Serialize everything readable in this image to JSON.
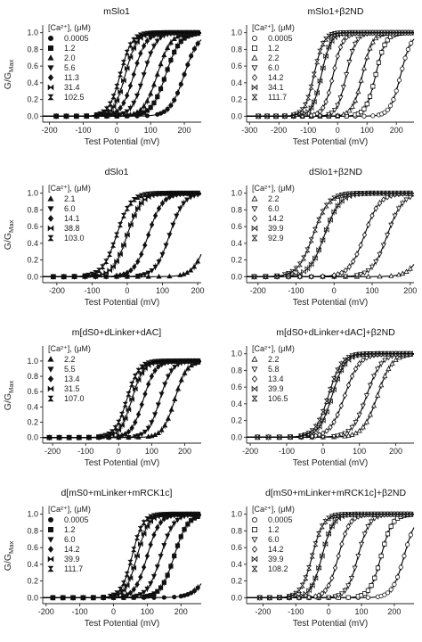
{
  "y_axis_label": "G/G",
  "y_axis_label_sub": "Max",
  "chart_data": [
    {
      "type": "scatter",
      "title": "mSlo1",
      "xlabel": "Test Potential (mV)",
      "ylabel": "G/GMax",
      "xlim": [
        -220,
        250
      ],
      "ylim": [
        -0.05,
        1.05
      ],
      "xticks": [
        "-200",
        "-100",
        "0",
        "100",
        "200"
      ],
      "yticks": [
        "0.0",
        "0.2",
        "0.4",
        "0.6",
        "0.8",
        "1.0"
      ],
      "legend_title": "[Ca²⁺], (μM)",
      "filled": true,
      "series": [
        {
          "name": "0.0005",
          "marker": "circle",
          "vhalf": 200,
          "slope": 21
        },
        {
          "name": "1.2",
          "marker": "square",
          "vhalf": 145,
          "slope": 21
        },
        {
          "name": "2.0",
          "marker": "triangle-up",
          "vhalf": 120,
          "slope": 20
        },
        {
          "name": "5.6",
          "marker": "triangle-down",
          "vhalf": 80,
          "slope": 18
        },
        {
          "name": "11.3",
          "marker": "diamond",
          "vhalf": 50,
          "slope": 18
        },
        {
          "name": "31.4",
          "marker": "bowtie-h",
          "vhalf": 25,
          "slope": 17
        },
        {
          "name": "102.5",
          "marker": "bowtie-v",
          "vhalf": 10,
          "slope": 17
        }
      ]
    },
    {
      "type": "scatter",
      "title": "mSlo1+β2ND",
      "xlabel": "Test Potential (mV)",
      "ylabel": "",
      "xlim": [
        -310,
        260
      ],
      "ylim": [
        -0.05,
        1.05
      ],
      "xticks": [
        "-300",
        "-200",
        "-100",
        "0",
        "100",
        "200"
      ],
      "yticks": [
        "0.0",
        "0.2",
        "0.4",
        "0.6",
        "0.8",
        "1.0"
      ],
      "legend_title": "[Ca²⁺], (μM)",
      "filled": false,
      "series": [
        {
          "name": "0.0005",
          "marker": "circle",
          "vhalf": 215,
          "slope": 18
        },
        {
          "name": "1.2",
          "marker": "square",
          "vhalf": 130,
          "slope": 17
        },
        {
          "name": "2.2",
          "marker": "triangle-up",
          "vhalf": 85,
          "slope": 17
        },
        {
          "name": "6.0",
          "marker": "triangle-down",
          "vhalf": 30,
          "slope": 16
        },
        {
          "name": "14.2",
          "marker": "diamond",
          "vhalf": -15,
          "slope": 16
        },
        {
          "name": "34.1",
          "marker": "bowtie-h",
          "vhalf": -55,
          "slope": 16
        },
        {
          "name": "111.7",
          "marker": "bowtie-v",
          "vhalf": -80,
          "slope": 16
        }
      ]
    },
    {
      "type": "scatter",
      "title": "dSlo1",
      "xlabel": "Test Potential (mV)",
      "ylabel": "G/GMax",
      "xlim": [
        -240,
        210
      ],
      "ylim": [
        -0.05,
        1.05
      ],
      "xticks": [
        "-200",
        "-100",
        "0",
        "100",
        "200"
      ],
      "yticks": [
        "0.0",
        "0.2",
        "0.4",
        "0.6",
        "0.8",
        "1.0"
      ],
      "legend_title": "[Ca²⁺], (μM)",
      "filled": true,
      "series": [
        {
          "name": "2.1",
          "marker": "triangle-up",
          "vhalf": 230,
          "slope": 20
        },
        {
          "name": "6.0",
          "marker": "triangle-down",
          "vhalf": 120,
          "slope": 20
        },
        {
          "name": "14.1",
          "marker": "diamond",
          "vhalf": 60,
          "slope": 20
        },
        {
          "name": "38.8",
          "marker": "bowtie-h",
          "vhalf": 0,
          "slope": 20
        },
        {
          "name": "103.0",
          "marker": "bowtie-v",
          "vhalf": -30,
          "slope": 20
        }
      ]
    },
    {
      "type": "scatter",
      "title": "dSlo1+β2ND",
      "xlabel": "Test Potential (mV)",
      "ylabel": "",
      "xlim": [
        -230,
        210
      ],
      "ylim": [
        -0.05,
        1.05
      ],
      "xticks": [
        "-200",
        "-100",
        "0",
        "100",
        "200"
      ],
      "yticks": [
        "0.0",
        "0.2",
        "0.4",
        "0.6",
        "0.8",
        "1.0"
      ],
      "legend_title": "[Ca²⁺], (μM)",
      "filled": false,
      "series": [
        {
          "name": "2.2",
          "marker": "triangle-up",
          "vhalf": 245,
          "slope": 20
        },
        {
          "name": "6.0",
          "marker": "triangle-down",
          "vhalf": 140,
          "slope": 20
        },
        {
          "name": "14.2",
          "marker": "diamond",
          "vhalf": 80,
          "slope": 20
        },
        {
          "name": "39.9",
          "marker": "bowtie-h",
          "vhalf": -25,
          "slope": 20
        },
        {
          "name": "92.9",
          "marker": "bowtie-v",
          "vhalf": -55,
          "slope": 20
        }
      ]
    },
    {
      "type": "scatter",
      "title": "m[dS0+dLinker+dAC]",
      "xlabel": "Test Potential (mV)",
      "ylabel": "G/GMax",
      "xlim": [
        -230,
        250
      ],
      "ylim": [
        -0.05,
        1.15
      ],
      "xticks": [
        "-200",
        "-100",
        "0",
        "100",
        "200"
      ],
      "yticks": [
        "0.0",
        "0.2",
        "0.4",
        "0.6",
        "0.8",
        "1.0"
      ],
      "legend_title": "[Ca²⁺], (μM)",
      "filled": true,
      "series": [
        {
          "name": "2.2",
          "marker": "triangle-up",
          "vhalf": 170,
          "slope": 18
        },
        {
          "name": "5.5",
          "marker": "triangle-down",
          "vhalf": 125,
          "slope": 18
        },
        {
          "name": "13.4",
          "marker": "diamond",
          "vhalf": 75,
          "slope": 18
        },
        {
          "name": "31.5",
          "marker": "bowtie-h",
          "vhalf": 40,
          "slope": 18
        },
        {
          "name": "107.0",
          "marker": "bowtie-v",
          "vhalf": 25,
          "slope": 18
        }
      ]
    },
    {
      "type": "scatter",
      "title": "m[dS0+dLinker+dAC]+β2ND",
      "xlabel": "Test Potential (mV)",
      "ylabel": "",
      "xlim": [
        -210,
        250
      ],
      "ylim": [
        -0.05,
        1.05
      ],
      "xticks": [
        "-200",
        "-100",
        "0",
        "100",
        "200"
      ],
      "yticks": [
        "0.0",
        "0.2",
        "0.4",
        "0.6",
        "0.8",
        "1.0"
      ],
      "legend_title": "[Ca²⁺], (μM)",
      "filled": false,
      "series": [
        {
          "name": "2.2",
          "marker": "triangle-up",
          "vhalf": 150,
          "slope": 20
        },
        {
          "name": "5.8",
          "marker": "triangle-down",
          "vhalf": 120,
          "slope": 20
        },
        {
          "name": "13.4",
          "marker": "diamond",
          "vhalf": 60,
          "slope": 20
        },
        {
          "name": "39.9",
          "marker": "bowtie-h",
          "vhalf": 25,
          "slope": 18
        },
        {
          "name": "106.5",
          "marker": "bowtie-v",
          "vhalf": 15,
          "slope": 18
        }
      ]
    },
    {
      "type": "scatter",
      "title": "d[mS0+mLinker+mRCK1c]",
      "xlabel": "Test Potential (mV)",
      "ylabel": "G/GMax",
      "xlim": [
        -210,
        260
      ],
      "ylim": [
        -0.05,
        1.05
      ],
      "xticks": [
        "-200",
        "-100",
        "0",
        "100",
        "200"
      ],
      "yticks": [
        "0.0",
        "0.2",
        "0.4",
        "0.6",
        "0.8",
        "1.0"
      ],
      "legend_title": "[Ca²⁺], (μM)",
      "filled": true,
      "series": [
        {
          "name": "0.0005",
          "marker": "circle",
          "vhalf": 300,
          "slope": 25
        },
        {
          "name": "1.2",
          "marker": "square",
          "vhalf": 180,
          "slope": 20
        },
        {
          "name": "6.0",
          "marker": "triangle-down",
          "vhalf": 140,
          "slope": 19
        },
        {
          "name": "14.2",
          "marker": "diamond",
          "vhalf": 100,
          "slope": 18
        },
        {
          "name": "39.9",
          "marker": "bowtie-h",
          "vhalf": 70,
          "slope": 17
        },
        {
          "name": "111.7",
          "marker": "bowtie-v",
          "vhalf": 55,
          "slope": 16
        }
      ]
    },
    {
      "type": "scatter",
      "title": "d[mS0+mLinker+mRCK1c]+β2ND",
      "xlabel": "Test Potential (mV)",
      "ylabel": "",
      "xlim": [
        -250,
        260
      ],
      "ylim": [
        -0.05,
        1.05
      ],
      "xticks": [
        "-200",
        "-100",
        "0",
        "100",
        "200"
      ],
      "yticks": [
        "0.0",
        "0.2",
        "0.4",
        "0.6",
        "0.8",
        "1.0"
      ],
      "legend_title": "[Ca²⁺], (μM)",
      "filled": false,
      "series": [
        {
          "name": "0.0005",
          "marker": "circle",
          "vhalf": 230,
          "slope": 18
        },
        {
          "name": "1.2",
          "marker": "square",
          "vhalf": 160,
          "slope": 17
        },
        {
          "name": "6.0",
          "marker": "triangle-down",
          "vhalf": 90,
          "slope": 17
        },
        {
          "name": "14.2",
          "marker": "diamond",
          "vhalf": 30,
          "slope": 17
        },
        {
          "name": "39.9",
          "marker": "bowtie-h",
          "vhalf": -20,
          "slope": 17
        },
        {
          "name": "108.2",
          "marker": "bowtie-v",
          "vhalf": -50,
          "slope": 17
        }
      ]
    }
  ]
}
